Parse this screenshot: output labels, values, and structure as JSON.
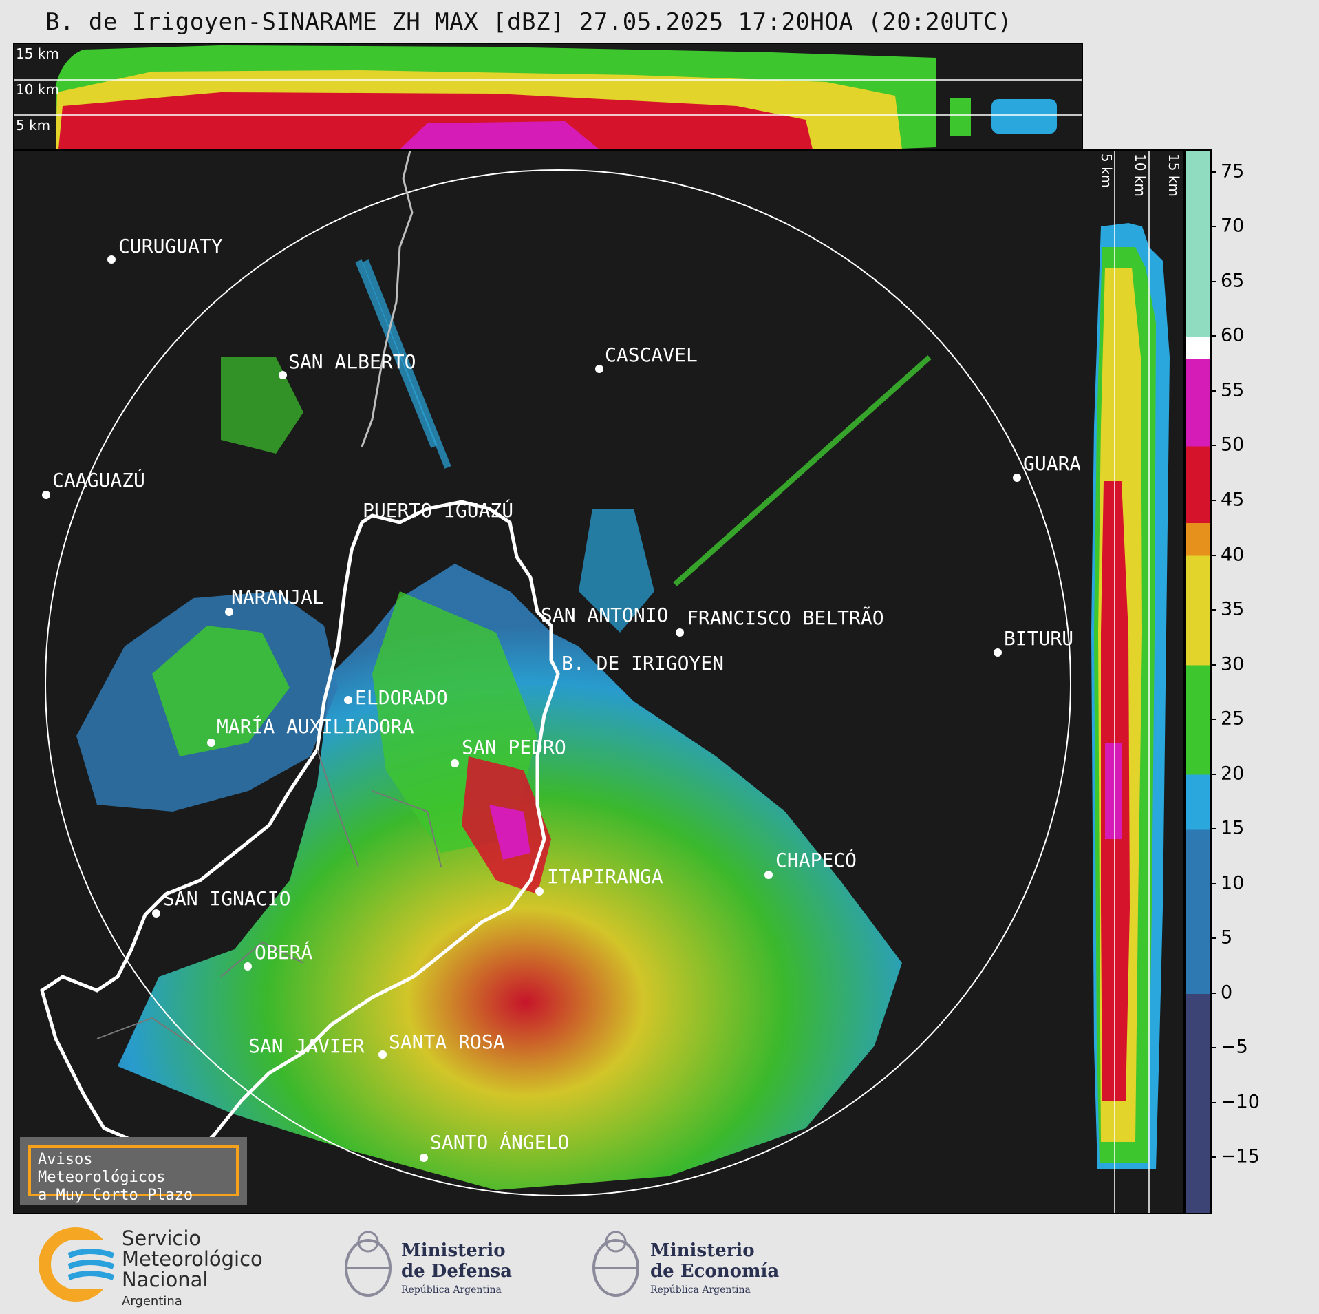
{
  "title": "B. de Irigoyen-SINARAME ZH MAX [dBZ] 27.05.2025 17:20HOA (20:20UTC)",
  "top_panel": {
    "height_labels": [
      "15 km",
      "10 km",
      "5 km"
    ]
  },
  "side_panel": {
    "height_labels": [
      "5 km",
      "10 km",
      "15 km"
    ]
  },
  "colorbar": {
    "unit": "dBZ",
    "ticks": [
      "75",
      "70",
      "65",
      "60",
      "55",
      "50",
      "45",
      "40",
      "35",
      "30",
      "25",
      "20",
      "15",
      "10",
      "5",
      "0",
      "−5",
      "−10",
      "−15"
    ],
    "range": [
      -20,
      77
    ],
    "colors": {
      "lt0": "#3b4475",
      "0to15": "#2f79b3",
      "15to20": "#2aa7dd",
      "20to30": "#3ec62e",
      "30to40": "#e2d42a",
      "40to43": "#e6911b",
      "43to50": "#d5142b",
      "50to58": "#d61cb7",
      "58to60": "#ffffff",
      "60to77": "#8fdcc0"
    }
  },
  "cities": [
    {
      "name": "CURUGUATY"
    },
    {
      "name": "SAN ALBERTO"
    },
    {
      "name": "CASCAVEL"
    },
    {
      "name": "CAAGUAZÚ"
    },
    {
      "name": "GUARA"
    },
    {
      "name": "PUERTO IGUAZÚ"
    },
    {
      "name": "NARANJAL"
    },
    {
      "name": "SAN ANTONIO"
    },
    {
      "name": "FRANCISCO BELTRÃO"
    },
    {
      "name": "BITURU"
    },
    {
      "name": "B. DE IRIGOYEN"
    },
    {
      "name": "ELDORADO"
    },
    {
      "name": "MARÍA AUXILIADORA"
    },
    {
      "name": "SAN PEDRO"
    },
    {
      "name": "CHAPECÓ"
    },
    {
      "name": "ITAPIRANGA"
    },
    {
      "name": "SAN IGNACIO"
    },
    {
      "name": "OBERÁ"
    },
    {
      "name": "SAN JAVIER"
    },
    {
      "name": "SANTA ROSA"
    },
    {
      "name": "SANTO ÁNGELO"
    }
  ],
  "avisos": {
    "line1": "Avisos Meteorológicos",
    "line2": "a Muy Corto Plazo"
  },
  "footer": {
    "smn": [
      "Servicio",
      "Meteorológico",
      "Nacional",
      "Argentina"
    ],
    "defensa": [
      "Ministerio",
      "de Defensa",
      "República Argentina"
    ],
    "economia": [
      "Ministerio",
      "de Economía",
      "República Argentina"
    ]
  }
}
